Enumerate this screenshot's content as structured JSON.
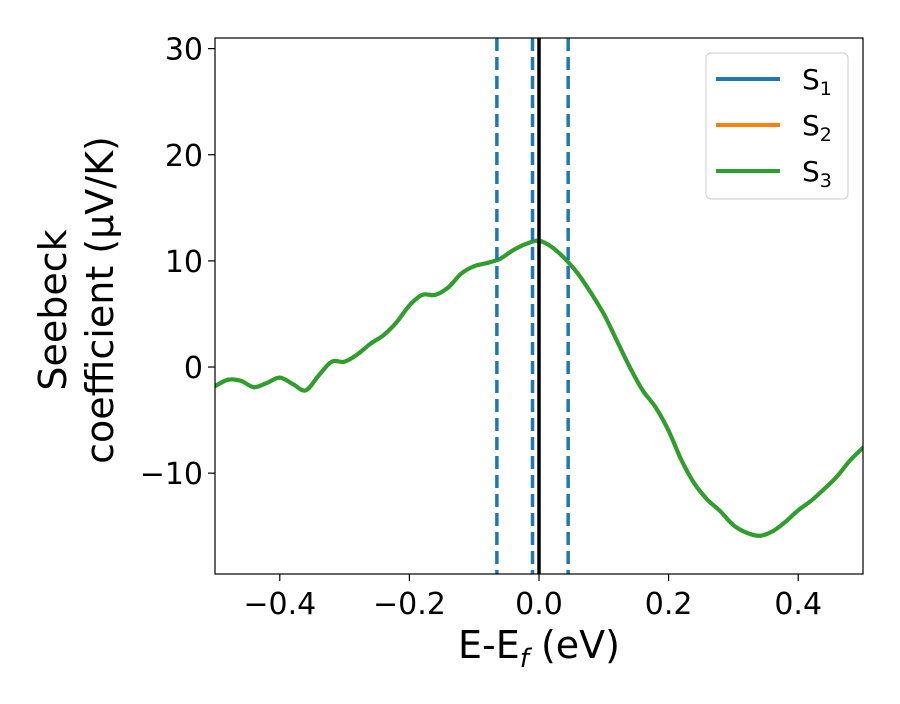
{
  "chart_data": {
    "type": "line",
    "title": "",
    "xlabel": {
      "main": "E-E",
      "sub": "f",
      "suffix": " (eV)"
    },
    "ylabel": {
      "line1": "Seebeck",
      "line2": "coefficient  (μV/K)"
    },
    "xlim": [
      -0.5,
      0.5
    ],
    "ylim": [
      -19.5,
      31
    ],
    "xticks": [
      -0.4,
      -0.2,
      0.0,
      0.2,
      0.4
    ],
    "xtick_labels": [
      "−0.4",
      "−0.2",
      "0.0",
      "0.2",
      "0.4"
    ],
    "yticks": [
      -10,
      0,
      10,
      20,
      30
    ],
    "ytick_labels": [
      "−10",
      "0",
      "10",
      "20",
      "30"
    ],
    "grid": false,
    "legend": {
      "placement": "top-right",
      "entries": [
        {
          "main": "S",
          "sub": "1",
          "color": "#1f77b4"
        },
        {
          "main": "S",
          "sub": "2",
          "color": "#ff7f0e"
        },
        {
          "main": "S",
          "sub": "3",
          "color": "#2ca02c"
        }
      ]
    },
    "vlines": [
      {
        "x": -0.065,
        "style": "dashed",
        "color": "#1f77b4"
      },
      {
        "x": -0.01,
        "style": "dashed",
        "color": "#1f77b4"
      },
      {
        "x": 0.045,
        "style": "dashed",
        "color": "#1f77b4"
      },
      {
        "x": 0.0,
        "style": "solid",
        "color": "#000000"
      }
    ],
    "x": [
      -0.5,
      -0.48,
      -0.46,
      -0.44,
      -0.42,
      -0.4,
      -0.38,
      -0.36,
      -0.34,
      -0.32,
      -0.3,
      -0.28,
      -0.26,
      -0.24,
      -0.22,
      -0.2,
      -0.18,
      -0.16,
      -0.14,
      -0.12,
      -0.1,
      -0.08,
      -0.06,
      -0.04,
      -0.02,
      0.0,
      0.02,
      0.04,
      0.06,
      0.08,
      0.1,
      0.12,
      0.14,
      0.16,
      0.18,
      0.2,
      0.22,
      0.24,
      0.26,
      0.28,
      0.3,
      0.32,
      0.34,
      0.36,
      0.38,
      0.4,
      0.42,
      0.44,
      0.46,
      0.48,
      0.5
    ],
    "series": [
      {
        "name": "S1",
        "color": "#1f77b4",
        "values": [
          -1.8,
          -1.2,
          -1.3,
          -1.9,
          -1.5,
          -1.0,
          -1.6,
          -2.2,
          -0.8,
          0.5,
          0.5,
          1.2,
          2.2,
          3.0,
          4.2,
          5.8,
          6.8,
          6.8,
          7.5,
          8.8,
          9.5,
          9.8,
          10.2,
          11.0,
          11.6,
          11.9,
          11.3,
          10.2,
          8.8,
          7.0,
          5.0,
          2.5,
          0.0,
          -2.2,
          -3.8,
          -6.0,
          -8.8,
          -11.0,
          -12.5,
          -13.6,
          -14.9,
          -15.6,
          -15.9,
          -15.5,
          -14.6,
          -13.5,
          -12.6,
          -11.5,
          -10.3,
          -8.8,
          -7.6
        ]
      },
      {
        "name": "S2",
        "color": "#ff7f0e",
        "values": [
          -1.8,
          -1.2,
          -1.3,
          -1.9,
          -1.5,
          -1.0,
          -1.6,
          -2.2,
          -0.8,
          0.5,
          0.5,
          1.2,
          2.2,
          3.0,
          4.2,
          5.8,
          6.8,
          6.8,
          7.5,
          8.8,
          9.5,
          9.8,
          10.2,
          11.0,
          11.6,
          11.9,
          11.3,
          10.2,
          8.8,
          7.0,
          5.0,
          2.5,
          0.0,
          -2.2,
          -3.8,
          -6.0,
          -8.8,
          -11.0,
          -12.5,
          -13.6,
          -14.9,
          -15.6,
          -15.9,
          -15.5,
          -14.6,
          -13.5,
          -12.6,
          -11.5,
          -10.3,
          -8.8,
          -7.6
        ]
      },
      {
        "name": "S3",
        "color": "#2ca02c",
        "values": [
          -1.8,
          -1.2,
          -1.3,
          -1.9,
          -1.5,
          -1.0,
          -1.6,
          -2.2,
          -0.8,
          0.5,
          0.5,
          1.2,
          2.2,
          3.0,
          4.2,
          5.8,
          6.8,
          6.8,
          7.5,
          8.8,
          9.5,
          9.8,
          10.2,
          11.0,
          11.6,
          11.9,
          11.3,
          10.2,
          8.8,
          7.0,
          5.0,
          2.5,
          0.0,
          -2.2,
          -3.8,
          -6.0,
          -8.8,
          -11.0,
          -12.5,
          -13.6,
          -14.9,
          -15.6,
          -15.9,
          -15.5,
          -14.6,
          -13.5,
          -12.6,
          -11.5,
          -10.3,
          -8.8,
          -7.6
        ]
      }
    ]
  }
}
